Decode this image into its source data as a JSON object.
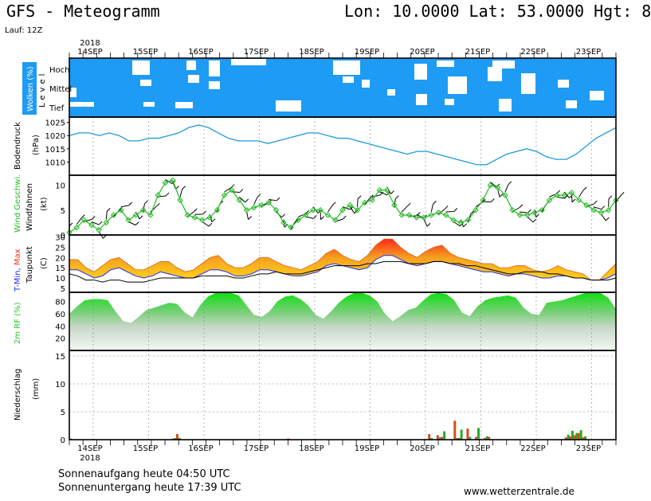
{
  "header": {
    "title": "GFS - Meteogramm",
    "coords": "Lon: 10.0000 Lat: 53.0000 Hgt: 8",
    "run": "Lauf: 12Z"
  },
  "footer": {
    "sunrise": "Sonnenaufgang heute 04:50 UTC",
    "sunset": "Sonnenuntergang heute 17:39 UTC",
    "site": "www.wetterzentrale.de"
  },
  "colors": {
    "cloud_bg": "#1e9bf5",
    "pressure": "#1e9bd7",
    "wind": "#22bb22",
    "tmax": "#ff2a1a",
    "tmin": "#1a2aff",
    "humidity": "#22cc22",
    "precip_red": "#d94a1a",
    "precip_green": "#22aa22"
  },
  "chart_data": {
    "type": "line",
    "year_label": "2018",
    "dates": [
      "14SEP",
      "15SEP",
      "16SEP",
      "17SEP",
      "18SEP",
      "19SEP",
      "20SEP",
      "21SEP",
      "22SEP",
      "23SEP"
    ],
    "clouds": {
      "title": "Wolken (%)",
      "level_label": "Level",
      "levels": [
        "Hoch",
        "Mittel",
        "Tief"
      ]
    },
    "pressure": {
      "ylabel": "Bodendruck (hPa)",
      "ylim": [
        1005,
        1027
      ],
      "ticks": [
        1010,
        1015,
        1020,
        1025
      ],
      "values": [
        1020,
        1021,
        1021,
        1020,
        1021,
        1020,
        1018,
        1018,
        1019,
        1019,
        1020,
        1021,
        1023,
        1024,
        1023,
        1021,
        1019,
        1018,
        1018,
        1018,
        1017,
        1018,
        1019,
        1020,
        1021,
        1021,
        1020,
        1019,
        1019,
        1018,
        1017,
        1016,
        1015,
        1014,
        1013,
        1014,
        1014,
        1013,
        1012,
        1011,
        1010,
        1009,
        1009,
        1011,
        1013,
        1014,
        1015,
        1014,
        1012,
        1011,
        1011,
        1013,
        1016,
        1019,
        1021,
        1023
      ]
    },
    "wind": {
      "ylabel_speed": "Wind Geschwi.",
      "ylabel_barbs": "Windfahnen",
      "unit": "(kt)",
      "ylim": [
        0,
        12
      ],
      "ticks": [
        0,
        5,
        10
      ],
      "values": [
        0.5,
        1.5,
        3,
        2,
        1,
        2.5,
        4,
        5,
        3,
        4,
        5,
        4,
        8,
        10.5,
        11,
        7,
        4,
        3.5,
        3,
        3.5,
        5,
        8,
        9,
        7,
        5,
        5.5,
        6,
        6.5,
        5,
        2.5,
        1.5,
        3,
        4,
        5,
        5,
        4,
        3,
        5,
        6,
        5,
        6.5,
        7,
        9,
        9,
        6,
        4,
        4,
        3.5,
        3.5,
        4,
        4.5,
        4,
        3,
        2.5,
        3,
        5,
        7,
        10,
        9.5,
        8,
        5,
        4,
        4,
        4.5,
        5,
        7,
        8,
        8,
        8.5,
        7,
        6,
        5,
        4.5,
        5,
        7
      ]
    },
    "temperature": {
      "ylabel": "T-Min, Max Taupunkt (C)",
      "ylim": [
        3,
        31
      ],
      "ticks": [
        5,
        10,
        15,
        20,
        25,
        30
      ],
      "tmax": [
        19,
        19,
        15,
        13,
        16,
        19,
        20,
        17,
        14,
        14,
        16,
        18,
        18,
        15,
        13,
        14,
        17,
        20,
        21,
        17,
        15,
        15,
        17,
        20,
        20,
        18,
        16,
        15,
        14,
        16,
        18,
        22,
        24,
        21,
        19,
        18,
        21,
        26,
        29,
        29,
        25,
        22,
        20,
        23,
        25,
        26,
        22,
        20,
        19,
        18,
        17,
        17,
        15,
        15,
        16,
        16,
        14,
        13,
        14,
        16,
        14,
        13,
        12,
        9,
        9,
        13,
        17
      ],
      "tmin": [
        14,
        14,
        12,
        10,
        11,
        14,
        15,
        13,
        11,
        10,
        11,
        13,
        12,
        11,
        10,
        10,
        12,
        14,
        14,
        13,
        11,
        11,
        12,
        14,
        14,
        13,
        12,
        11,
        11,
        12,
        13,
        16,
        17,
        16,
        15,
        14,
        15,
        19,
        21,
        21,
        19,
        17,
        16,
        17,
        18,
        18,
        17,
        16,
        15,
        14,
        13,
        13,
        12,
        11,
        12,
        12,
        11,
        10,
        10,
        11,
        11,
        10,
        10,
        9,
        9,
        10,
        12
      ],
      "dewpoint": [
        12,
        11,
        9,
        9,
        8,
        9,
        9,
        8,
        8,
        8,
        9,
        10,
        10,
        10,
        10,
        10,
        11,
        11,
        11,
        11,
        10,
        10,
        11,
        12,
        12,
        13,
        12,
        12,
        12,
        13,
        14,
        15,
        16,
        16,
        16,
        16,
        17,
        17,
        18,
        18,
        18,
        17,
        17,
        17,
        18,
        18,
        17,
        17,
        16,
        16,
        15,
        14,
        13,
        12,
        12,
        13,
        13,
        13,
        12,
        12,
        11,
        10,
        10,
        9,
        9,
        9,
        10
      ]
    },
    "humidity": {
      "ylabel": "2m RF (%)",
      "ylim": [
        0,
        95
      ],
      "ticks": [
        20,
        40,
        60,
        80
      ],
      "values": [
        60,
        72,
        82,
        84,
        84,
        82,
        64,
        48,
        45,
        55,
        66,
        70,
        74,
        78,
        76,
        62,
        54,
        74,
        88,
        94,
        94,
        94,
        90,
        74,
        58,
        55,
        64,
        80,
        88,
        90,
        84,
        74,
        58,
        52,
        64,
        78,
        88,
        94,
        94,
        90,
        80,
        60,
        48,
        56,
        66,
        70,
        82,
        92,
        94,
        92,
        82,
        62,
        56,
        72,
        82,
        86,
        88,
        90,
        86,
        70,
        60,
        58,
        78,
        80,
        82,
        86,
        90,
        94,
        94,
        94,
        86,
        68
      ]
    },
    "precip": {
      "ylabel": "Niederschlag (mm)",
      "ylim": [
        0,
        16
      ],
      "ticks": [
        0,
        5,
        10,
        15
      ],
      "bars": [
        {
          "slot": 0,
          "r": 0.2,
          "g": 0.0
        },
        {
          "slot": 24,
          "r": 0.2,
          "g": 0.3
        },
        {
          "slot": 25,
          "r": 1.0,
          "g": 0.3
        },
        {
          "slot": 51,
          "r": 0.2,
          "g": 0.0
        },
        {
          "slot": 84,
          "r": 1.0,
          "g": 0.3
        },
        {
          "slot": 86,
          "r": 0.8,
          "g": 0.4
        },
        {
          "slot": 87,
          "r": 0.5,
          "g": 1.5
        },
        {
          "slot": 90,
          "r": 3.4,
          "g": 0.3
        },
        {
          "slot": 91,
          "r": 0.3,
          "g": 1.8
        },
        {
          "slot": 93,
          "r": 2.0,
          "g": 0.5
        },
        {
          "slot": 95,
          "r": 0.5,
          "g": 2.1
        },
        {
          "slot": 97,
          "r": 0.3,
          "g": 0.6
        },
        {
          "slot": 98,
          "r": 0.5,
          "g": 0.0
        },
        {
          "slot": 116,
          "r": 0.4,
          "g": 0.9
        },
        {
          "slot": 117,
          "r": 0.6,
          "g": 1.6
        },
        {
          "slot": 118,
          "r": 0.8,
          "g": 1.2
        },
        {
          "slot": 119,
          "r": 1.2,
          "g": 1.7
        },
        {
          "slot": 120,
          "r": 0.4,
          "g": 0.6
        }
      ]
    }
  }
}
